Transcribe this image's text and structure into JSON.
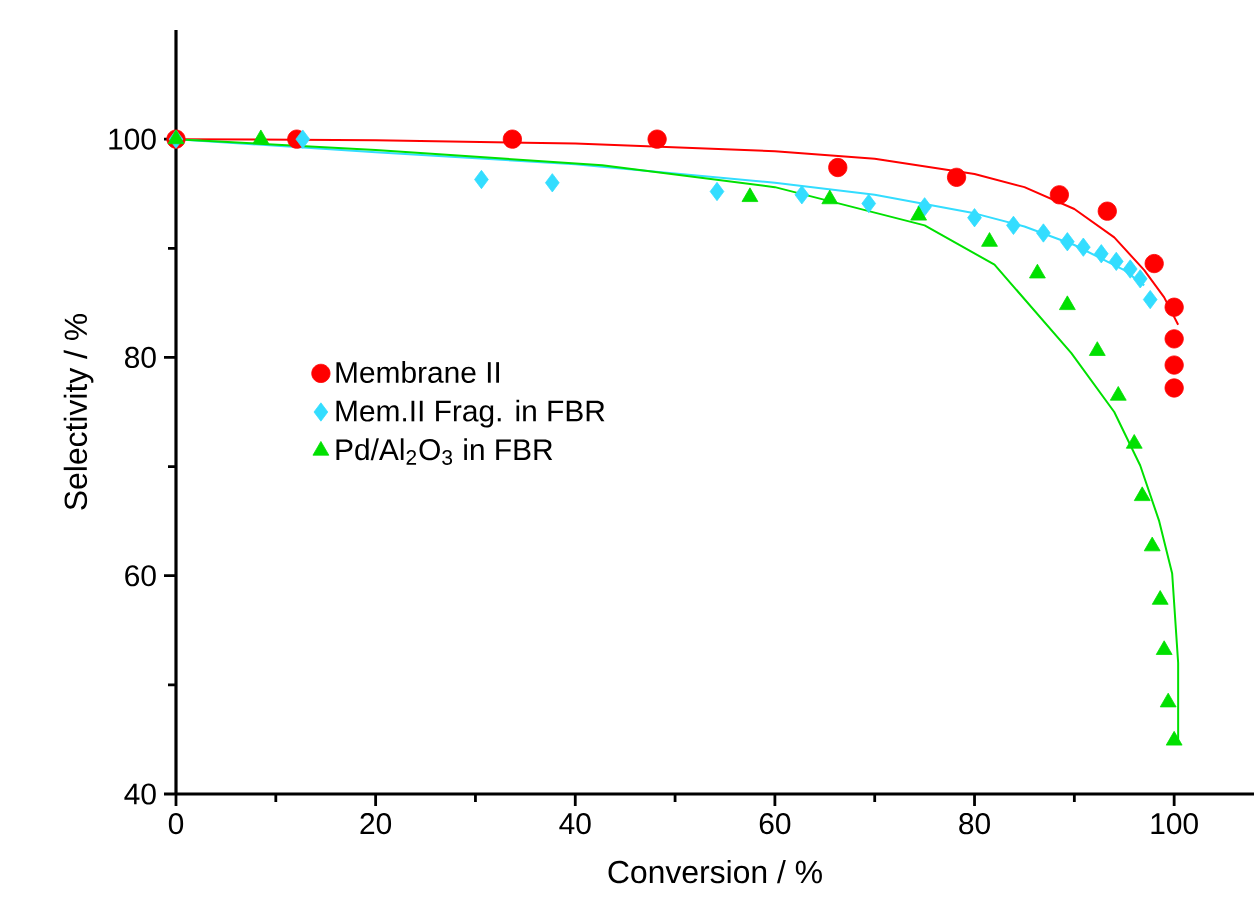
{
  "chart_data": {
    "type": "scatter",
    "xlabel": "Conversion / %",
    "ylabel": "Selectivity / %",
    "xlim": [
      0,
      108
    ],
    "ylim": [
      40,
      110
    ],
    "xticks": [
      0,
      20,
      40,
      60,
      80,
      100
    ],
    "yticks": [
      40,
      60,
      80,
      100
    ],
    "grid": false,
    "legend": "center left",
    "series": [
      {
        "name": "Membrane II",
        "marker": "circle",
        "color": "#ff0000",
        "x": [
          0,
          12.1,
          33.7,
          48.2,
          66.3,
          78.2,
          88.5,
          93.3,
          98,
          100,
          100,
          100,
          100
        ],
        "values": [
          100,
          100,
          100,
          100,
          97.4,
          96.5,
          94.9,
          93.4,
          88.6,
          84.6,
          81.7,
          79.3,
          77.2
        ]
      },
      {
        "name": "Mem.II Frag. in FBR",
        "marker": "diamond",
        "color": "#33ddff",
        "x": [
          0,
          12.7,
          30.6,
          37.7,
          54.2,
          62.7,
          69.4,
          75,
          80,
          83.9,
          86.9,
          89.3,
          90.9,
          92.7,
          94.2,
          95.6,
          96.6,
          97.6
        ],
        "values": [
          100,
          100,
          96.3,
          96.0,
          95.2,
          94.9,
          94.1,
          93.8,
          92.8,
          92.1,
          91.4,
          90.6,
          90.1,
          89.5,
          88.8,
          88.1,
          87.2,
          85.3
        ]
      },
      {
        "name": "Pd/Al$_{2}$O$_{3}$ in FBR",
        "marker": "triangle",
        "color": "#00e000",
        "x": [
          0,
          8.5,
          57.5,
          65.5,
          74.4,
          81.5,
          86.3,
          89.3,
          92.3,
          94.4,
          96,
          96.8,
          97.8,
          98.6,
          99,
          99.4,
          100
        ],
        "values": [
          100,
          100,
          94.7,
          94.5,
          93,
          90.6,
          87.7,
          84.8,
          80.6,
          76.5,
          72.1,
          67.3,
          62.7,
          57.8,
          53.2,
          48.4,
          44.9
        ]
      },
      {
        "type": "line",
        "marker": "none",
        "color": "#ff0000",
        "x": [
          0,
          20,
          40,
          60,
          70,
          80,
          85,
          90,
          94,
          97,
          99,
          100.4
        ],
        "values": [
          100,
          99.9,
          99.6,
          98.9,
          98.2,
          96.8,
          95.6,
          93.6,
          91,
          88,
          85.5,
          83
        ]
      },
      {
        "type": "line",
        "marker": "none",
        "color": "#33ddff",
        "x": [
          0,
          20,
          40,
          60,
          70,
          80,
          85,
          90,
          95,
          97
        ],
        "values": [
          100,
          98.8,
          97.7,
          96.0,
          94.9,
          93.2,
          92.0,
          90.3,
          88,
          86.6
        ]
      },
      {
        "type": "line",
        "marker": "none",
        "color": "#00e000",
        "x": [
          0,
          20,
          42.7,
          60,
          75,
          82,
          89.7,
          94,
          96.6,
          98.5,
          99.8,
          100.4,
          100.4
        ],
        "values": [
          100,
          99,
          97.6,
          95.6,
          92.1,
          88.5,
          80.4,
          75,
          70.1,
          65,
          60.2,
          52,
          45
        ]
      }
    ]
  }
}
